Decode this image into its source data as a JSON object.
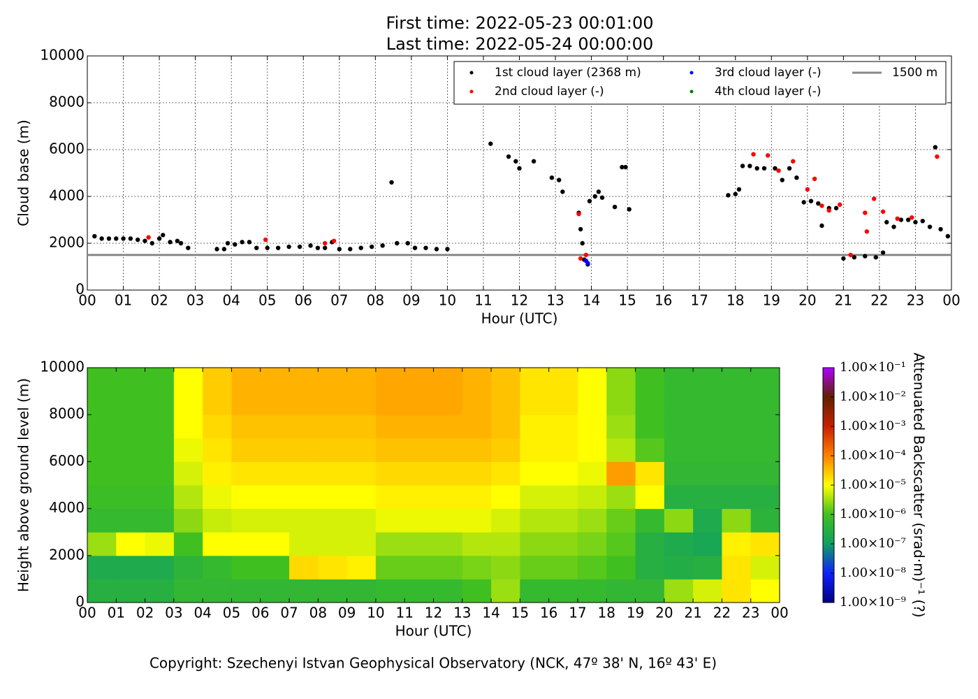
{
  "chart_data": [
    {
      "type": "scatter",
      "title": "First time: 2022-05-23 00:01:00",
      "subtitle": "Last time: 2022-05-24 00:00:00",
      "x_label": "Hour (UTC)",
      "y_label": "Cloud base (m)",
      "xlim": [
        0,
        24
      ],
      "ylim": [
        0,
        10000
      ],
      "xticks": [
        {
          "value": 0,
          "label": "00"
        },
        {
          "value": 1,
          "label": "01"
        },
        {
          "value": 2,
          "label": "02"
        },
        {
          "value": 3,
          "label": "03"
        },
        {
          "value": 4,
          "label": "04"
        },
        {
          "value": 5,
          "label": "05"
        },
        {
          "value": 6,
          "label": "06"
        },
        {
          "value": 7,
          "label": "07"
        },
        {
          "value": 8,
          "label": "08"
        },
        {
          "value": 9,
          "label": "09"
        },
        {
          "value": 10,
          "label": "10"
        },
        {
          "value": 11,
          "label": "11"
        },
        {
          "value": 12,
          "label": "12"
        },
        {
          "value": 13,
          "label": "13"
        },
        {
          "value": 14,
          "label": "14"
        },
        {
          "value": 15,
          "label": "15"
        },
        {
          "value": 16,
          "label": "16"
        },
        {
          "value": 17,
          "label": "17"
        },
        {
          "value": 18,
          "label": "18"
        },
        {
          "value": 19,
          "label": "19"
        },
        {
          "value": 20,
          "label": "20"
        },
        {
          "value": 21,
          "label": "21"
        },
        {
          "value": 22,
          "label": "22"
        },
        {
          "value": 23,
          "label": "23"
        },
        {
          "value": 24,
          "label": "00"
        }
      ],
      "yticks": [
        0,
        2000,
        4000,
        6000,
        8000,
        10000
      ],
      "grid": true,
      "legend": "upper right",
      "series": [
        {
          "name": "1st cloud layer (2368 m)",
          "color": "#000000",
          "x": [
            0.2,
            0.4,
            0.6,
            0.8,
            1.0,
            1.2,
            1.4,
            1.6,
            1.8,
            2.0,
            2.1,
            2.3,
            2.5,
            2.6,
            2.8,
            3.6,
            3.8,
            3.9,
            4.1,
            4.3,
            4.5,
            4.7,
            5.0,
            5.3,
            5.6,
            5.9,
            6.2,
            6.4,
            6.6,
            6.8,
            7.0,
            7.3,
            7.6,
            7.9,
            8.2,
            8.45,
            8.6,
            8.9,
            9.1,
            9.4,
            9.7,
            10.0,
            11.2,
            11.7,
            11.9,
            12.0,
            12.4,
            12.9,
            13.1,
            13.2,
            13.65,
            13.7,
            13.75,
            13.8,
            13.9,
            13.95,
            14.1,
            14.2,
            14.3,
            14.65,
            14.85,
            14.95,
            15.05,
            17.8,
            18.0,
            18.1,
            18.2,
            18.4,
            18.6,
            18.8,
            19.1,
            19.3,
            19.5,
            19.7,
            19.9,
            20.1,
            20.3,
            20.4,
            20.6,
            20.8,
            21.0,
            21.3,
            21.6,
            21.9,
            22.1,
            22.2,
            22.4,
            22.6,
            22.8,
            23.0,
            23.2,
            23.4,
            23.55,
            23.7,
            23.9
          ],
          "values": [
            2300,
            2200,
            2200,
            2200,
            2200,
            2200,
            2150,
            2100,
            2000,
            2200,
            2350,
            2050,
            2100,
            2000,
            1800,
            1750,
            1750,
            2000,
            1950,
            2050,
            2050,
            1800,
            1800,
            1800,
            1850,
            1850,
            1900,
            1800,
            1800,
            2050,
            1750,
            1750,
            1800,
            1850,
            1900,
            4600,
            2000,
            2000,
            1800,
            1800,
            1750,
            1750,
            6250,
            5700,
            5500,
            5200,
            5500,
            4800,
            4700,
            4200,
            3300,
            2600,
            2000,
            1300,
            1100,
            3800,
            4000,
            4200,
            3950,
            3550,
            5250,
            5250,
            3450,
            4050,
            4100,
            4300,
            5300,
            5300,
            5200,
            5200,
            5200,
            4700,
            5200,
            4800,
            3750,
            3800,
            3700,
            2750,
            3500,
            3500,
            1350,
            1400,
            1450,
            1400,
            1600,
            2900,
            2700,
            3000,
            3000,
            2900,
            2950,
            2700,
            6100,
            2600,
            2300
          ]
        },
        {
          "name": "2nd cloud layer (-)",
          "color": "#ff0000",
          "x": [
            1.7,
            4.95,
            6.6,
            6.85,
            13.65,
            13.7,
            13.85,
            18.5,
            18.9,
            19.2,
            19.6,
            20.0,
            20.2,
            20.4,
            20.6,
            20.9,
            21.2,
            21.6,
            21.65,
            21.85,
            22.1,
            22.5,
            22.9,
            23.6
          ],
          "values": [
            2250,
            2150,
            2000,
            2100,
            3250,
            1350,
            1500,
            5800,
            5750,
            5100,
            5500,
            4300,
            4750,
            3600,
            3400,
            3650,
            1500,
            3300,
            2500,
            3900,
            3350,
            3050,
            3100,
            5700
          ]
        },
        {
          "name": "3rd cloud layer (-)",
          "color": "#0000ff",
          "x": [
            13.85,
            13.9
          ],
          "values": [
            1250,
            1150
          ]
        },
        {
          "name": "4th cloud layer (-)",
          "color": "#008000",
          "x": [],
          "values": []
        }
      ],
      "hline": {
        "name": "1500 m",
        "value": 1500,
        "color": "#888888"
      }
    },
    {
      "type": "heatmap",
      "x_label": "Hour (UTC)",
      "y_label": "Height above ground level (m)",
      "colorbar_label": "Attenuated Backscatter (srad·m)⁻¹ (?)",
      "xlim": [
        0,
        24
      ],
      "ylim": [
        0,
        10000
      ],
      "xticks": [
        {
          "value": 0,
          "label": "00"
        },
        {
          "value": 1,
          "label": "01"
        },
        {
          "value": 2,
          "label": "02"
        },
        {
          "value": 3,
          "label": "03"
        },
        {
          "value": 4,
          "label": "04"
        },
        {
          "value": 5,
          "label": "05"
        },
        {
          "value": 6,
          "label": "06"
        },
        {
          "value": 7,
          "label": "07"
        },
        {
          "value": 8,
          "label": "08"
        },
        {
          "value": 9,
          "label": "09"
        },
        {
          "value": 10,
          "label": "10"
        },
        {
          "value": 11,
          "label": "11"
        },
        {
          "value": 12,
          "label": "12"
        },
        {
          "value": 13,
          "label": "13"
        },
        {
          "value": 14,
          "label": "14"
        },
        {
          "value": 15,
          "label": "15"
        },
        {
          "value": 16,
          "label": "16"
        },
        {
          "value": 17,
          "label": "17"
        },
        {
          "value": 18,
          "label": "18"
        },
        {
          "value": 19,
          "label": "19"
        },
        {
          "value": 20,
          "label": "20"
        },
        {
          "value": 21,
          "label": "21"
        },
        {
          "value": 22,
          "label": "22"
        },
        {
          "value": 23,
          "label": "23"
        },
        {
          "value": 24,
          "label": "00"
        }
      ],
      "yticks": [
        0,
        2000,
        4000,
        6000,
        8000,
        10000
      ],
      "x_bins": [
        0,
        1,
        2,
        3,
        4,
        5,
        6,
        7,
        8,
        9,
        10,
        11,
        12,
        13,
        14,
        15,
        16,
        17,
        18,
        19,
        20,
        21,
        22,
        23,
        24
      ],
      "y_bins": [
        0,
        1000,
        2000,
        3000,
        4000,
        5000,
        6000,
        7000,
        8000,
        9000,
        10000
      ],
      "z": [
        [
          3e-07,
          2e-07,
          3e-06,
          6e-07,
          8e-07,
          1e-06,
          1e-06,
          1e-06,
          1e-06,
          1e-06
        ],
        [
          3e-07,
          2e-07,
          1e-05,
          6e-07,
          8e-07,
          1e-06,
          1e-06,
          1e-06,
          1e-06,
          1e-06
        ],
        [
          3e-07,
          2e-07,
          8e-06,
          6e-07,
          8e-07,
          1e-06,
          1e-06,
          1e-06,
          1e-06,
          1e-06
        ],
        [
          5e-07,
          4e-07,
          1e-06,
          2.5e-06,
          4e-06,
          6e-06,
          8e-06,
          1e-05,
          1e-05,
          1e-05
        ],
        [
          5e-07,
          6e-07,
          1e-05,
          5e-06,
          8e-06,
          1.3e-05,
          1.6e-05,
          2e-05,
          2.5e-05,
          2.5e-05
        ],
        [
          5e-07,
          1e-06,
          1e-05,
          6e-06,
          1e-05,
          1.6e-05,
          2.5e-05,
          3e-05,
          4e-05,
          4e-05
        ],
        [
          5e-07,
          1e-06,
          1e-05,
          6e-06,
          1e-05,
          1.6e-05,
          2.5e-05,
          3e-05,
          4e-05,
          4e-05
        ],
        [
          5e-07,
          2e-05,
          6e-06,
          6e-06,
          1e-05,
          1.6e-05,
          2.5e-05,
          3e-05,
          4e-05,
          4e-05
        ],
        [
          5e-07,
          1.6e-05,
          6e-06,
          6e-06,
          1e-05,
          1.6e-05,
          2.5e-05,
          3e-05,
          4e-05,
          4e-05
        ],
        [
          5e-07,
          1.3e-05,
          6e-06,
          6e-06,
          1e-05,
          1.6e-05,
          2.5e-05,
          3e-05,
          4e-05,
          4e-05
        ],
        [
          6e-07,
          1.6e-06,
          3e-06,
          8e-06,
          1.3e-05,
          2e-05,
          3e-05,
          4e-05,
          5e-05,
          5e-05
        ],
        [
          6e-07,
          1.6e-06,
          3e-06,
          8e-06,
          1.3e-05,
          2e-05,
          3e-05,
          4e-05,
          5e-05,
          5e-05
        ],
        [
          6e-07,
          1.6e-06,
          3e-06,
          8e-06,
          1.3e-05,
          2e-05,
          3e-05,
          4e-05,
          5e-05,
          5e-05
        ],
        [
          1e-06,
          2e-06,
          4e-06,
          8e-06,
          1.3e-05,
          2e-05,
          3e-05,
          4e-05,
          4e-05,
          4e-05
        ],
        [
          3e-06,
          2.5e-06,
          4e-06,
          6e-06,
          1e-05,
          1.6e-05,
          2.5e-05,
          3e-05,
          3e-05,
          3e-05
        ],
        [
          6e-07,
          1.6e-06,
          2.5e-06,
          4e-06,
          6e-06,
          1e-05,
          1.3e-05,
          1.3e-05,
          1.6e-05,
          1.6e-05
        ],
        [
          6e-07,
          1.6e-06,
          2.5e-06,
          4e-06,
          6e-06,
          1e-05,
          1.3e-05,
          1.3e-05,
          1.6e-05,
          1.6e-05
        ],
        [
          6e-07,
          1.3e-06,
          2e-06,
          3e-06,
          5e-06,
          8e-06,
          1e-05,
          1e-05,
          1e-05,
          1e-05
        ],
        [
          5e-07,
          1e-06,
          1.3e-06,
          1.6e-06,
          3e-06,
          6e-05,
          4e-06,
          3e-06,
          2.5e-06,
          2.5e-06
        ],
        [
          5e-07,
          3e-07,
          3e-07,
          6e-07,
          1e-05,
          1.6e-05,
          1.3e-06,
          1e-06,
          1e-06,
          1e-06
        ],
        [
          3e-06,
          2.5e-07,
          2e-07,
          2.5e-06,
          3e-07,
          5e-07,
          6e-07,
          6e-07,
          6e-07,
          6e-07
        ],
        [
          6e-06,
          3e-07,
          1.6e-07,
          2e-07,
          3e-07,
          5e-07,
          6e-07,
          6e-07,
          6e-07,
          6e-07
        ],
        [
          1.6e-05,
          1.6e-05,
          1.3e-05,
          2.5e-06,
          3e-07,
          5e-07,
          6e-07,
          6e-07,
          6e-07,
          6e-07
        ],
        [
          1e-05,
          6e-06,
          1.6e-05,
          4e-07,
          3e-07,
          5e-07,
          6e-07,
          6e-07,
          6e-07,
          6e-07
        ]
      ],
      "clim": [
        1e-09,
        0.1
      ],
      "log": true,
      "cticks": [
        {
          "value": 1e-09,
          "label": "1.00×10⁻⁹"
        },
        {
          "value": 1e-08,
          "label": "1.00×10⁻⁸"
        },
        {
          "value": 1e-07,
          "label": "1.00×10⁻⁷"
        },
        {
          "value": 1e-06,
          "label": "1.00×10⁻⁶"
        },
        {
          "value": 1e-05,
          "label": "1.00×10⁻⁵"
        },
        {
          "value": 0.0001,
          "label": "1.00×10⁻⁴"
        },
        {
          "value": 0.001,
          "label": "1.00×10⁻³"
        },
        {
          "value": 0.01,
          "label": "1.00×10⁻²"
        },
        {
          "value": 0.1,
          "label": "1.00×10⁻¹"
        }
      ],
      "colorscale": [
        "#000080",
        "#1020ff",
        "#10a060",
        "#40c020",
        "#ffff00",
        "#ff8000",
        "#c82000",
        "#602000",
        "#b000ff"
      ],
      "grid": true
    }
  ],
  "footer": "Copyright: Szechenyi Istvan Geophysical Observatory (NCK, 47º 38' N, 16º 43' E)"
}
